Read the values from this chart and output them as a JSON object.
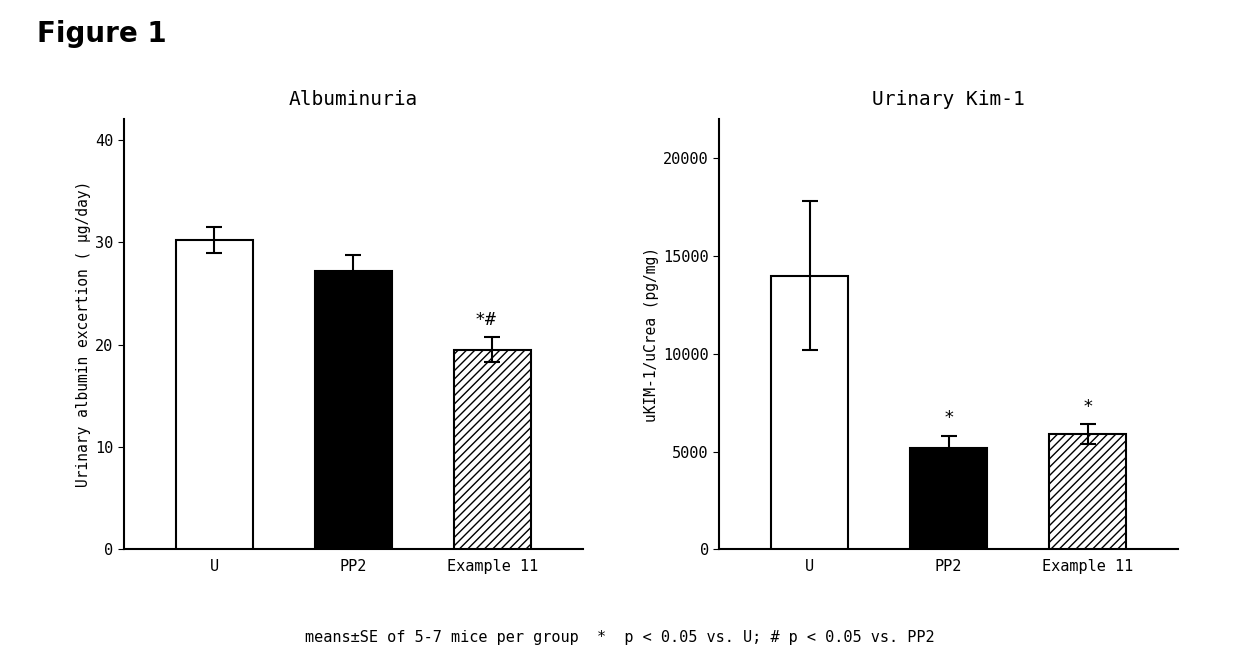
{
  "fig_title": "Figure 1",
  "fig_footnote": "means±SE of 5-7 mice per group  *  p < 0.05 vs. U; # p < 0.05 vs. PP2",
  "left_chart": {
    "title": "Albuminuria",
    "ylabel": "Urinary albumin excertion ( μg/day)",
    "categories": [
      "U",
      "PP2",
      "Example 11"
    ],
    "values": [
      30.2,
      27.2,
      19.5
    ],
    "errors": [
      1.3,
      1.5,
      1.2
    ],
    "colors": [
      "white",
      "black",
      "white"
    ],
    "patterns": [
      "",
      "",
      "////"
    ],
    "ylim": [
      0,
      42
    ],
    "yticks": [
      0,
      10,
      20,
      30,
      40
    ],
    "annotations": [
      "",
      "",
      "*#"
    ],
    "use_comma_format": false
  },
  "right_chart": {
    "title": "Urinary Kim-1",
    "ylabel": "uKIM-1/uCrea (pg/mg)",
    "categories": [
      "U",
      "PP2",
      "Example 11"
    ],
    "values": [
      14000,
      5200,
      5900
    ],
    "errors": [
      3800,
      600,
      500
    ],
    "colors": [
      "white",
      "black",
      "white"
    ],
    "patterns": [
      "",
      "",
      "////"
    ],
    "ylim": [
      0,
      22000
    ],
    "yticks": [
      0,
      5000,
      10000,
      15000,
      20000
    ],
    "annotations": [
      "",
      "*",
      "*"
    ],
    "use_comma_format": false
  },
  "bar_width": 0.55,
  "edgecolor": "black",
  "background_color": "white"
}
